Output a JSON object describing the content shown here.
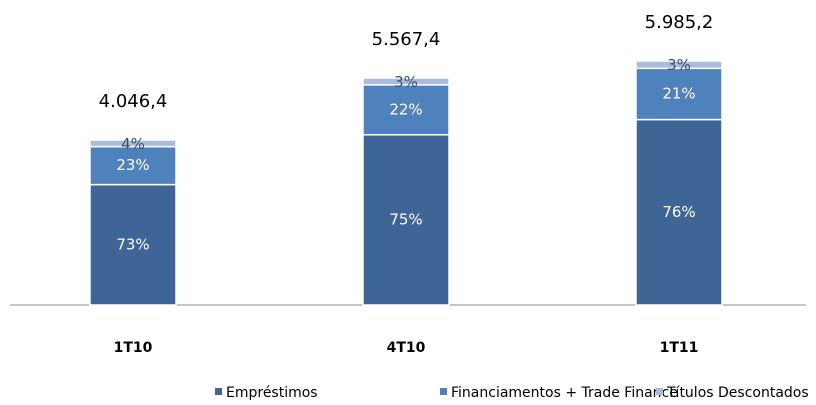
{
  "chart_data": {
    "type": "bar",
    "stacked": true,
    "categories": [
      "1T10",
      "4T10",
      "1T11"
    ],
    "series": [
      {
        "name": "Empréstimos",
        "color": "#3f6496",
        "values": [
          73,
          75,
          76
        ],
        "value_labels": [
          "73%",
          "75%",
          "76%"
        ]
      },
      {
        "name": "Financiamentos + Trade Finance",
        "color": "#4f81bd",
        "values": [
          23,
          22,
          21
        ],
        "value_labels": [
          "23%",
          "22%",
          "21%"
        ]
      },
      {
        "name": "Títulos Descontados",
        "color": "#a9bcdb",
        "values": [
          4,
          3,
          3
        ],
        "value_labels": [
          "4%",
          "3%",
          "3%"
        ]
      }
    ],
    "totals": {
      "values": [
        4046.4,
        5567.4,
        5985.2
      ],
      "value_labels": [
        "4.046,4",
        "5.567,4",
        "5.985,2"
      ]
    }
  }
}
